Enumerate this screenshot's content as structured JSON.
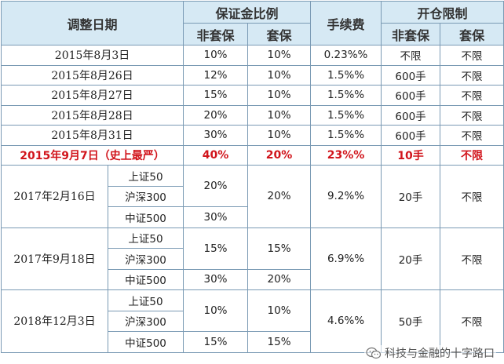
{
  "headers": {
    "date": "调整日期",
    "margin_ratio": "保证金比例",
    "fee": "手续费",
    "position_limit": "开仓限制",
    "non_hedge": "非套保",
    "hedge": "套保"
  },
  "rows": [
    {
      "date": "2015年8月3日",
      "margin_nh": "10%",
      "margin_h": "10%",
      "fee": "0.23%%",
      "limit_nh": "不限",
      "limit_h": "不限"
    },
    {
      "date": "2015年8月26日",
      "margin_nh": "12%",
      "margin_h": "10%",
      "fee": "1.5%%",
      "limit_nh": "600手",
      "limit_h": "不限"
    },
    {
      "date": "2015年8月27日",
      "margin_nh": "15%",
      "margin_h": "10%",
      "fee": "1.5%%",
      "limit_nh": "600手",
      "limit_h": "不限"
    },
    {
      "date": "2015年8月28日",
      "margin_nh": "20%",
      "margin_h": "10%",
      "fee": "1.5%%",
      "limit_nh": "600手",
      "limit_h": "不限"
    },
    {
      "date": "2015年8月31日",
      "margin_nh": "30%",
      "margin_h": "10%",
      "fee": "1.5%%",
      "limit_nh": "600手",
      "limit_h": "不限"
    }
  ],
  "highlight": {
    "date": "2015年9月7日（史上最严）",
    "margin_nh": "40%",
    "margin_h": "20%",
    "fee": "23%%",
    "limit_nh": "10手",
    "limit_h": "不限"
  },
  "groups": [
    {
      "date": "2017年2月16日",
      "subs": [
        "上证50",
        "沪深300",
        "中证500"
      ],
      "margin_nh": [
        "20%",
        "30%"
      ],
      "margin_h": "20%",
      "fee": "9.2%%",
      "limit_nh": "20手",
      "limit_h": "不限"
    },
    {
      "date": "2017年9月18日",
      "subs": [
        "上证50",
        "沪深300",
        "中证500"
      ],
      "margin_nh": [
        "15%",
        "30%"
      ],
      "margin_h": [
        "15%",
        "20%"
      ],
      "fee": "6.9%%",
      "limit_nh": "20手",
      "limit_h": "不限"
    },
    {
      "date": "2018年12月3日",
      "subs": [
        "上证50",
        "沪深300",
        "中证500"
      ],
      "margin_nh": [
        "10%",
        "15%"
      ],
      "margin_h": [
        "10%",
        "15%"
      ],
      "fee": "4.6%%",
      "limit_nh": "50手",
      "limit_h": "不限"
    }
  ],
  "watermark": {
    "text": "科技与金融的十字路口",
    "icon": "wechat-icon"
  }
}
